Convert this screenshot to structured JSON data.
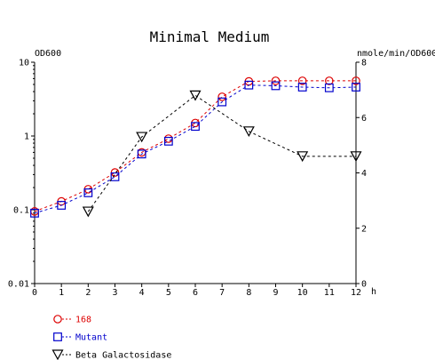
{
  "chart_data": {
    "type": "line",
    "title": "Minimal Medium",
    "x": [
      0,
      1,
      2,
      3,
      4,
      5,
      6,
      7,
      8,
      9,
      10,
      11,
      12
    ],
    "x_ticks": [
      "0",
      "1",
      "2",
      "3",
      "4",
      "5",
      "6",
      "7",
      "8",
      "9",
      "10",
      "11",
      "12"
    ],
    "xlabel": "h",
    "xlim": [
      0,
      12
    ],
    "left_axis": {
      "label": "OD600",
      "scale": "log",
      "ylim": [
        0.01,
        10
      ],
      "ticks": [
        {
          "value": 0.01,
          "label": "0.01"
        },
        {
          "value": 0.1,
          "label": "0.1"
        },
        {
          "value": 1,
          "label": "1"
        },
        {
          "value": 10,
          "label": "10"
        }
      ]
    },
    "right_axis": {
      "label": "nmole/min/OD600",
      "scale": "linear",
      "ylim": [
        0,
        8
      ],
      "ticks": [
        {
          "value": 0,
          "label": "0"
        },
        {
          "value": 2,
          "label": "2"
        },
        {
          "value": 4,
          "label": "4"
        },
        {
          "value": 6,
          "label": "6"
        },
        {
          "value": 8,
          "label": "8"
        }
      ]
    },
    "grid": false,
    "legend_position": "bottom-left",
    "series": [
      {
        "name": "168",
        "axis": "left",
        "marker": "circle",
        "color": "#dd0000",
        "x": [
          0,
          1,
          2,
          3,
          4,
          5,
          6,
          7,
          8,
          9,
          10,
          11,
          12
        ],
        "values": [
          0.095,
          0.13,
          0.19,
          0.32,
          0.6,
          0.92,
          1.5,
          3.4,
          5.5,
          5.6,
          5.6,
          5.6,
          5.6
        ]
      },
      {
        "name": "Mutant",
        "axis": "left",
        "marker": "square",
        "color": "#0000cc",
        "x": [
          0,
          1,
          2,
          3,
          4,
          5,
          6,
          7,
          8,
          9,
          10,
          11,
          12
        ],
        "values": [
          0.09,
          0.115,
          0.17,
          0.28,
          0.57,
          0.85,
          1.35,
          2.9,
          4.9,
          4.8,
          4.6,
          4.5,
          4.6
        ]
      },
      {
        "name": "Beta Galactosidase",
        "axis": "right",
        "marker": "triangle-down",
        "color": "#000000",
        "x": [
          2,
          4,
          6,
          8,
          10,
          12
        ],
        "values": [
          2.6,
          5.3,
          6.8,
          5.5,
          4.6,
          4.6
        ]
      }
    ]
  }
}
